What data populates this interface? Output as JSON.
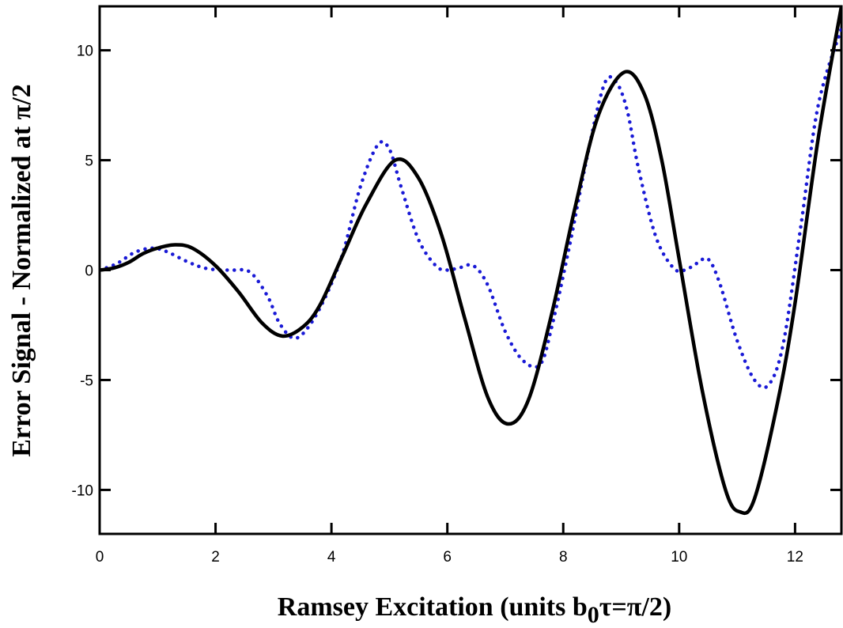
{
  "chart_data": {
    "type": "line",
    "title": "",
    "xlabel": "Ramsey Excitation (units b",
    "xlabel_sub": "0",
    "xlabel_tail": "τ=π/2)",
    "ylabel": "Error Signal - Normalized at π/2",
    "xlim": [
      0,
      12.8
    ],
    "ylim": [
      -12,
      12
    ],
    "xticks": [
      0,
      2,
      4,
      6,
      8,
      10,
      12
    ],
    "yticks": [
      -10,
      -5,
      0,
      5,
      10
    ],
    "xtick_labels": [
      "0",
      "2",
      "4",
      "6",
      "8",
      "10",
      "12"
    ],
    "ytick_labels": [
      "-10",
      "-5",
      "0",
      "5",
      "10"
    ],
    "grid": false,
    "legend": "none",
    "series": [
      {
        "style": "solid",
        "color": "#000000",
        "x": [
          0,
          0.25,
          0.5,
          0.75,
          1.0,
          1.3,
          1.6,
          2.0,
          2.4,
          2.8,
          3.15,
          3.5,
          3.8,
          4.2,
          4.6,
          5.1,
          5.5,
          5.9,
          6.3,
          6.7,
          7.05,
          7.4,
          7.8,
          8.2,
          8.6,
          9.05,
          9.4,
          9.7,
          10.0,
          10.4,
          10.8,
          11.05,
          11.3,
          11.7,
          12.0,
          12.4,
          12.8
        ],
        "y": [
          0,
          0.1,
          0.35,
          0.75,
          1.0,
          1.15,
          1.0,
          0.2,
          -1.0,
          -2.4,
          -3.0,
          -2.6,
          -1.6,
          0.7,
          3.0,
          5.0,
          4.2,
          1.6,
          -2.2,
          -5.8,
          -7.0,
          -5.9,
          -2.0,
          2.8,
          7.0,
          9.0,
          8.0,
          5.0,
          0.5,
          -5.5,
          -10.0,
          -11.0,
          -10.4,
          -6.0,
          -1.5,
          6.0,
          12.0
        ]
      },
      {
        "style": "dotted",
        "color": "#1a1ad6",
        "x": [
          0,
          0.3,
          0.6,
          0.9,
          1.15,
          1.5,
          1.8,
          2.1,
          2.3,
          2.6,
          2.9,
          3.1,
          3.35,
          3.6,
          3.9,
          4.2,
          4.5,
          4.8,
          5.0,
          5.2,
          5.5,
          5.8,
          6.0,
          6.2,
          6.45,
          6.7,
          7.0,
          7.3,
          7.6,
          7.8,
          8.1,
          8.4,
          8.7,
          8.9,
          9.1,
          9.3,
          9.6,
          9.9,
          10.1,
          10.3,
          10.5,
          10.7,
          11.0,
          11.3,
          11.55,
          11.8,
          12.1,
          12.4,
          12.8
        ],
        "y": [
          0,
          0.3,
          0.8,
          1.0,
          0.85,
          0.4,
          0.1,
          0.0,
          0.0,
          -0.1,
          -1.2,
          -2.4,
          -3.1,
          -2.6,
          -1.2,
          0.8,
          3.8,
          5.7,
          5.5,
          3.8,
          1.4,
          0.2,
          0.0,
          0.1,
          0.2,
          -0.7,
          -2.8,
          -4.1,
          -4.3,
          -2.6,
          1.0,
          5.0,
          8.4,
          8.6,
          7.3,
          4.6,
          1.5,
          0.1,
          0.0,
          0.3,
          0.5,
          -0.6,
          -3.2,
          -5.0,
          -5.2,
          -3.3,
          2.0,
          7.5,
          11.0
        ]
      }
    ]
  }
}
